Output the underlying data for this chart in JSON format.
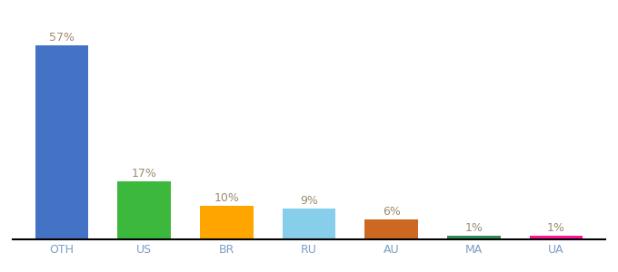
{
  "categories": [
    "OTH",
    "US",
    "BR",
    "RU",
    "AU",
    "MA",
    "UA"
  ],
  "values": [
    57,
    17,
    10,
    9,
    6,
    1,
    1
  ],
  "bar_colors": [
    "#4472C4",
    "#3CB83C",
    "#FFA500",
    "#87CEEB",
    "#CD6820",
    "#2E8B57",
    "#FF1493"
  ],
  "label_color": "#9E8B6E",
  "xlabel_color": "#7B9FC4",
  "background_color": "#FFFFFF",
  "ylim": [
    0,
    64
  ],
  "bar_width": 0.65,
  "label_fontsize": 9,
  "tick_fontsize": 9,
  "figsize": [
    6.8,
    3.0
  ],
  "dpi": 100
}
